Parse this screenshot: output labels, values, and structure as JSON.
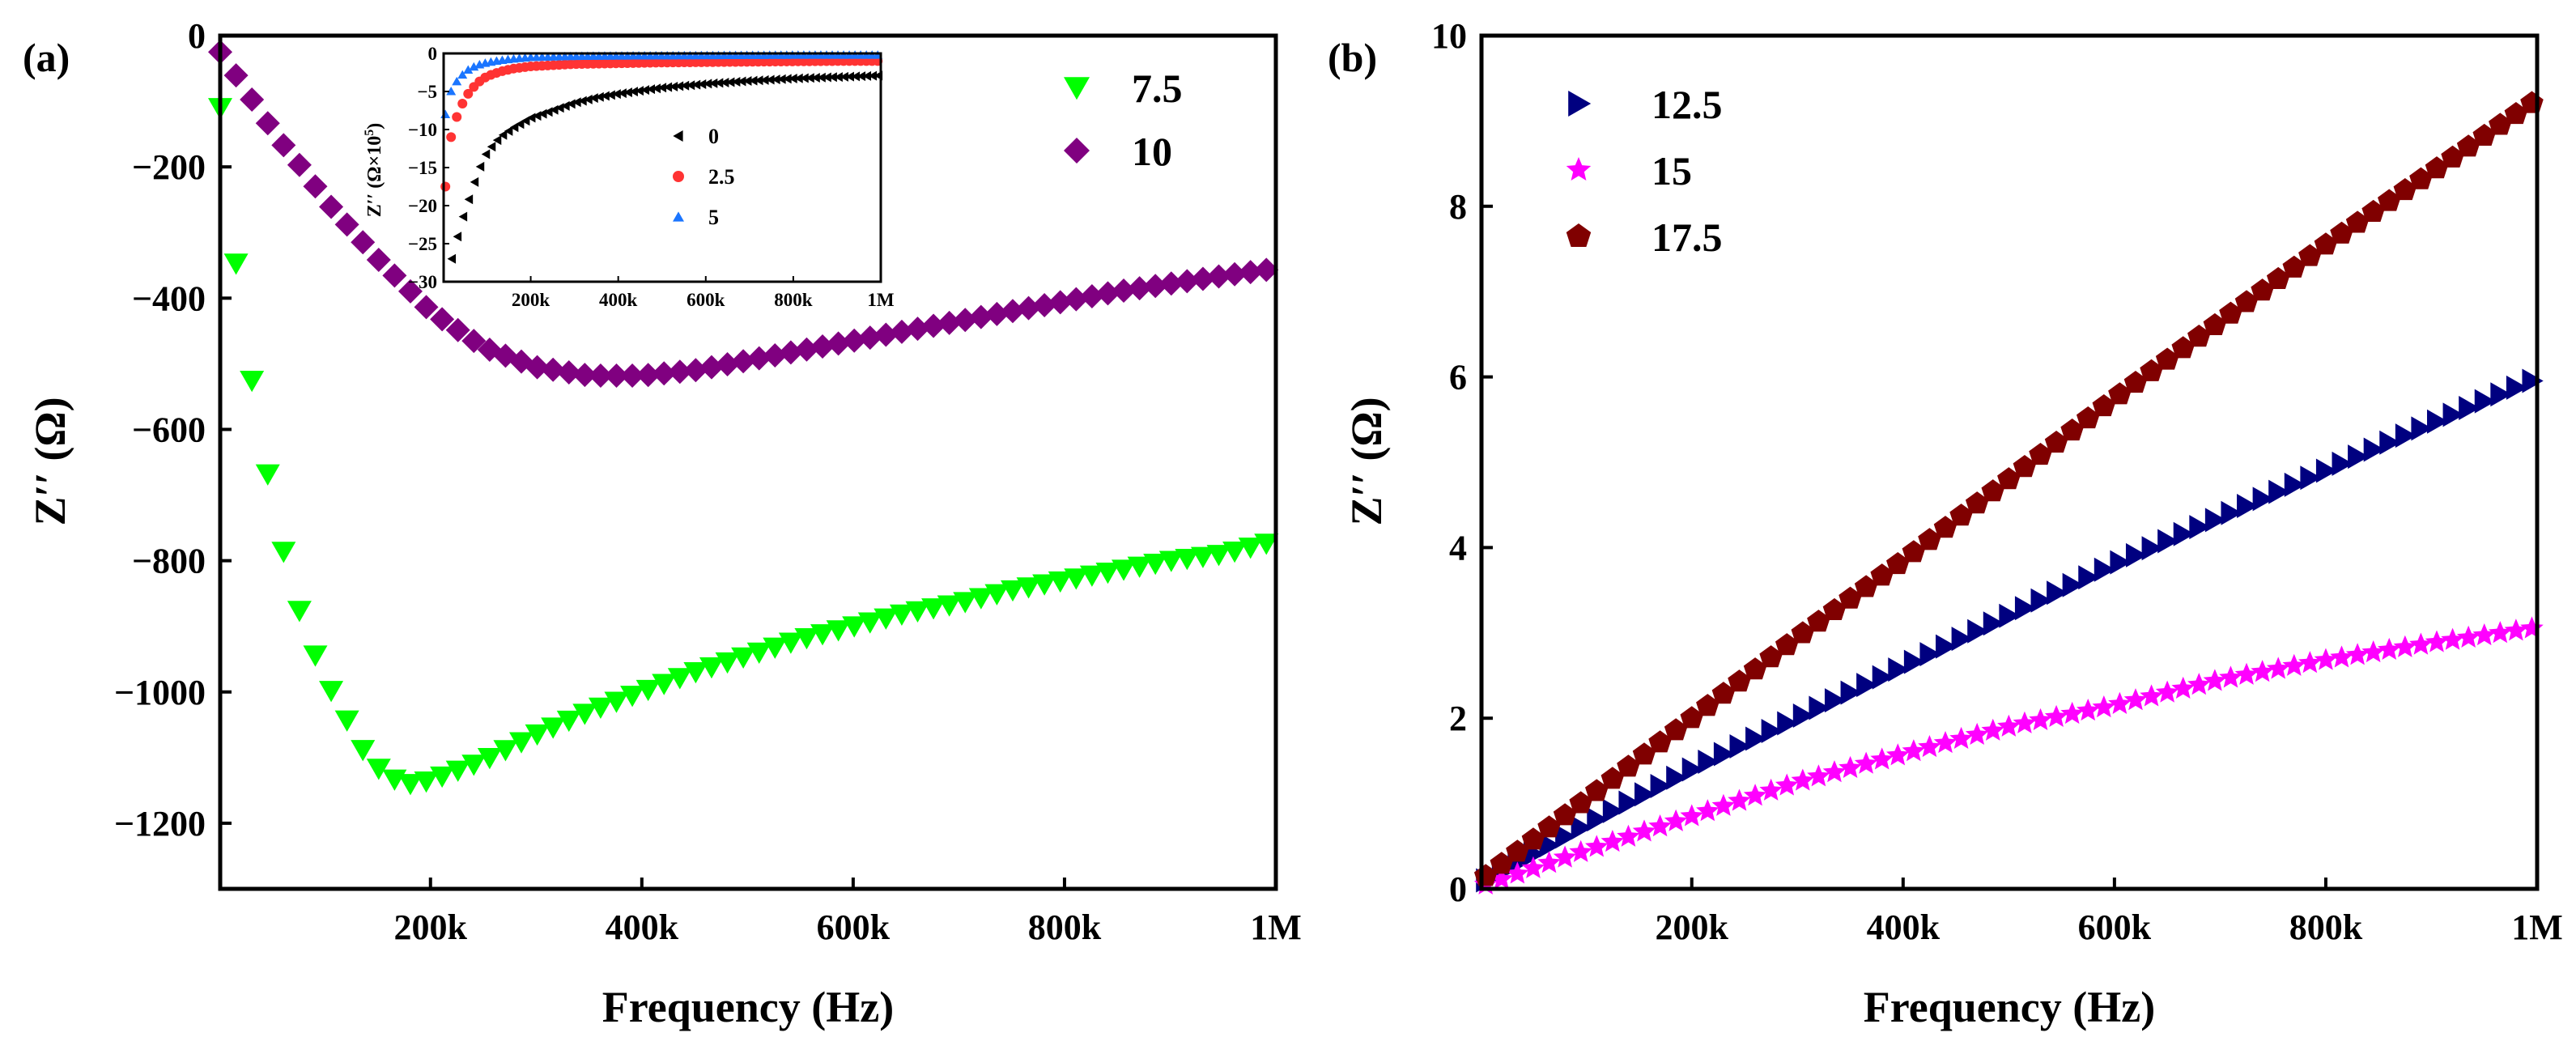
{
  "colors": {
    "green": "#00ff00",
    "purple": "#800080",
    "navy": "#000080",
    "magenta": "#ff00ff",
    "darkred": "#800000",
    "black": "#000000",
    "red": "#ff3333",
    "blue": "#1a75ff"
  },
  "chart_data": [
    {
      "type": "scatter",
      "panel_label": "(a)",
      "xlabel": "Frequency (Hz)",
      "ylabel": "Z′′ (Ω)",
      "xlim": [
        1000,
        1000000
      ],
      "ylim": [
        -1300,
        0
      ],
      "x_ticks": [
        200000,
        400000,
        600000,
        800000,
        1000000
      ],
      "x_tick_labels": [
        "200k",
        "400k",
        "600k",
        "800k",
        "1M"
      ],
      "y_ticks": [
        0,
        -200,
        -400,
        -600,
        -800,
        -1000,
        -1200
      ],
      "y_tick_labels": [
        "0",
        "−200",
        "−400",
        "−600",
        "−800",
        "−1000",
        "−1200"
      ],
      "legend_position": "top-right",
      "series": [
        {
          "name": "7.5",
          "marker": "triangle-down",
          "color": "#00ff00",
          "x": [
            1000,
            20000,
            40000,
            60000,
            80000,
            100000,
            120000,
            140000,
            160000,
            180000,
            200000,
            250000,
            300000,
            350000,
            400000,
            450000,
            500000,
            550000,
            600000,
            650000,
            700000,
            750000,
            800000,
            850000,
            900000,
            950000,
            1000000
          ],
          "y": [
            -110,
            -410,
            -620,
            -780,
            -900,
            -980,
            -1040,
            -1100,
            -1130,
            -1140,
            -1135,
            -1105,
            -1065,
            -1030,
            -1000,
            -970,
            -945,
            -920,
            -900,
            -880,
            -865,
            -845,
            -830,
            -815,
            -800,
            -790,
            -770
          ]
        },
        {
          "name": "10",
          "marker": "diamond",
          "color": "#800080",
          "x": [
            1000,
            20000,
            40000,
            60000,
            80000,
            100000,
            150000,
            200000,
            250000,
            300000,
            350000,
            400000,
            450000,
            500000,
            550000,
            600000,
            650000,
            700000,
            750000,
            800000,
            850000,
            900000,
            950000,
            1000000
          ],
          "y": [
            -25,
            -70,
            -120,
            -165,
            -205,
            -250,
            -340,
            -420,
            -475,
            -505,
            -518,
            -518,
            -510,
            -495,
            -480,
            -465,
            -450,
            -435,
            -420,
            -405,
            -390,
            -378,
            -366,
            -355
          ]
        }
      ],
      "inset": {
        "type": "scatter",
        "ylabel": "Z′′ (Ω×10",
        "ylabel_exponent": "5",
        "ylabel_close": ")",
        "xlim": [
          1000,
          1000000
        ],
        "ylim": [
          -30,
          0
        ],
        "x_ticks": [
          200000,
          400000,
          600000,
          800000,
          1000000
        ],
        "x_tick_labels": [
          "200k",
          "400k",
          "600k",
          "800k",
          "1M"
        ],
        "y_ticks": [
          0,
          -5,
          -10,
          -15,
          -20,
          -25,
          -30
        ],
        "y_tick_labels": [
          "0",
          "−5",
          "−10",
          "−15",
          "−20",
          "−25",
          "−30"
        ],
        "legend_position": "center-right",
        "series": [
          {
            "name": "0",
            "marker": "triangle-left",
            "color": "#000000",
            "x": [
              20000,
              40000,
              60000,
              80000,
              100000,
              130000,
              160000,
              200000,
              250000,
              300000,
              350000,
              400000,
              500000,
              600000,
              700000,
              800000,
              900000,
              1000000
            ],
            "y": [
              -27,
              -22.5,
              -19,
              -15.5,
              -13,
              -11,
              -9.8,
              -8.5,
              -7.5,
              -6.5,
              -5.8,
              -5.3,
              -4.5,
              -4,
              -3.6,
              -3.3,
              -3.1,
              -2.9
            ]
          },
          {
            "name": "2.5",
            "marker": "circle",
            "color": "#ff3333",
            "x": [
              5000,
              20000,
              40000,
              60000,
              80000,
              100000,
              130000,
              160000,
              200000,
              300000,
              400000,
              500000,
              600000,
              700000,
              800000,
              900000,
              1000000
            ],
            "y": [
              -17.5,
              -10,
              -7,
              -5,
              -3.8,
              -3,
              -2.4,
              -2,
              -1.7,
              -1.4,
              -1.3,
              -1.2,
              -1.15,
              -1.1,
              -1.05,
              -1,
              -1
            ]
          },
          {
            "name": "5",
            "marker": "triangle-up",
            "color": "#1a75ff",
            "x": [
              5000,
              20000,
              40000,
              60000,
              80000,
              100000,
              130000,
              160000,
              200000,
              300000,
              400000,
              600000,
              800000,
              1000000
            ],
            "y": [
              -8,
              -4.5,
              -3,
              -2,
              -1.5,
              -1.2,
              -0.9,
              -0.7,
              -0.5,
              -0.35,
              -0.3,
              -0.25,
              -0.2,
              -0.2
            ]
          }
        ]
      }
    },
    {
      "type": "scatter",
      "panel_label": "(b)",
      "xlabel": "Frequency (Hz)",
      "ylabel": "Z′′ (Ω)",
      "xlim": [
        1000,
        1000000
      ],
      "ylim": [
        0,
        10
      ],
      "x_ticks": [
        200000,
        400000,
        600000,
        800000,
        1000000
      ],
      "x_tick_labels": [
        "200k",
        "400k",
        "600k",
        "800k",
        "1M"
      ],
      "y_ticks": [
        0,
        2,
        4,
        6,
        8,
        10
      ],
      "y_tick_labels": [
        "0",
        "2",
        "4",
        "6",
        "8",
        "10"
      ],
      "legend_position": "top-left",
      "series": [
        {
          "name": "12.5",
          "marker": "triangle-right",
          "color": "#000080",
          "x": [
            5000,
            100000,
            200000,
            300000,
            400000,
            500000,
            600000,
            700000,
            800000,
            900000,
            1000000
          ],
          "y": [
            0.1,
            0.75,
            1.4,
            2.0,
            2.6,
            3.2,
            3.8,
            4.35,
            4.9,
            5.45,
            5.98
          ]
        },
        {
          "name": "15",
          "marker": "star",
          "color": "#ff00ff",
          "x": [
            5000,
            100000,
            200000,
            300000,
            400000,
            500000,
            600000,
            700000,
            800000,
            900000,
            1000000
          ],
          "y": [
            0.05,
            0.45,
            0.85,
            1.25,
            1.58,
            1.9,
            2.15,
            2.45,
            2.68,
            2.88,
            3.06
          ]
        },
        {
          "name": "17.5",
          "marker": "pentagon",
          "color": "#800000",
          "x": [
            5000,
            100000,
            200000,
            300000,
            400000,
            500000,
            600000,
            700000,
            800000,
            900000,
            1000000
          ],
          "y": [
            0.15,
            1.05,
            2.0,
            2.95,
            3.85,
            4.8,
            5.75,
            6.65,
            7.55,
            8.4,
            9.25
          ]
        }
      ]
    }
  ]
}
